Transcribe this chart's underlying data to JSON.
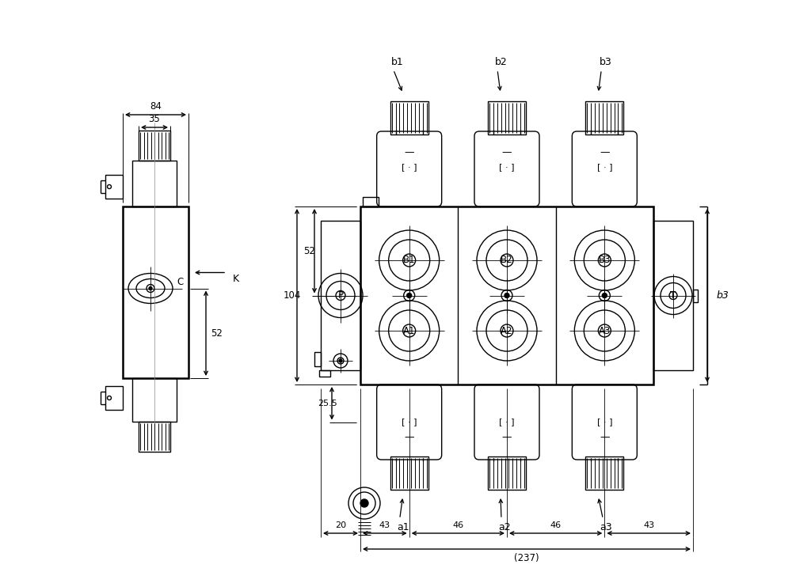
{
  "bg_color": "#ffffff",
  "line_color": "#000000",
  "lw": 1.0,
  "tlw": 1.8,
  "dim_84": "84",
  "dim_35": "35",
  "dim_104": "104",
  "dim_52_left": "52",
  "dim_52_right": "52",
  "dim_25_5": "25.5",
  "dim_b3": "b3",
  "dim_K": "K",
  "dim_C": "C",
  "dim_20": "20",
  "dim_43a": "43",
  "dim_46a": "46",
  "dim_46b": "46",
  "dim_43b": "43",
  "dim_237": "(237)",
  "labels_top": [
    "b1",
    "b2",
    "b3"
  ],
  "labels_bottom": [
    "a1",
    "a2",
    "a3"
  ],
  "labels_ports_B": [
    "B1",
    "B2",
    "B3"
  ],
  "labels_ports_A": [
    "A1",
    "A2",
    "A3"
  ],
  "label_P": "P",
  "label_T": "T"
}
